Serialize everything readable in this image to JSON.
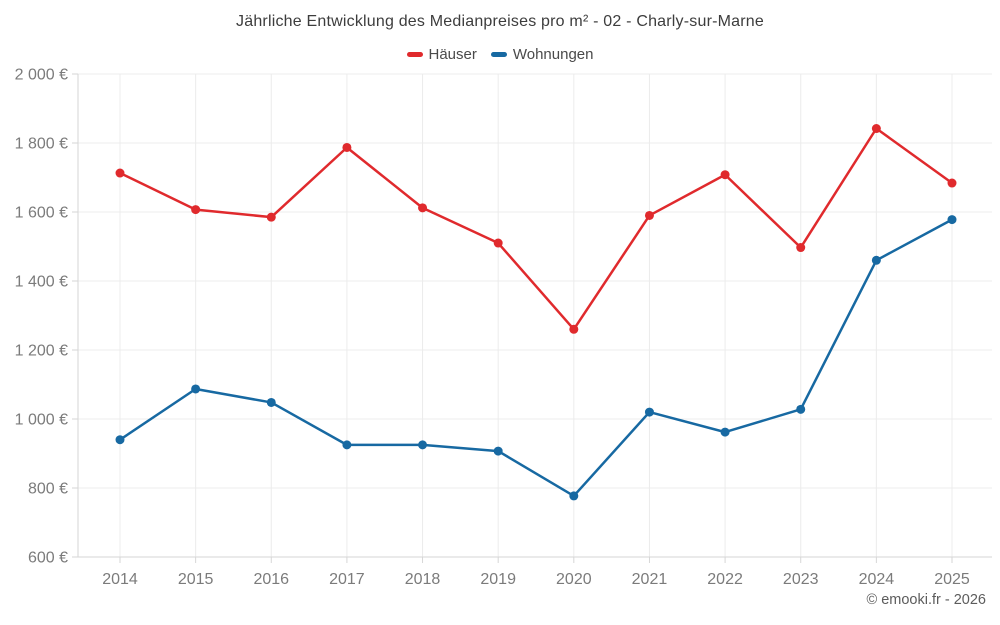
{
  "title": "Jährliche Entwicklung des Medianpreises pro m² - 02 - Charly-sur-Marne",
  "copyright": "© emooki.fr - 2026",
  "colors": {
    "haeuser": "#e02a2d",
    "wohnungen": "#1769a2",
    "grid": "#ececec",
    "axis": "#d6d6d6",
    "tick_label": "#7b7b7b",
    "title_text": "#3d3d3d",
    "legend_text": "#4a4a4a",
    "copyright_text": "#5c5c5c"
  },
  "chart_data": {
    "type": "line",
    "title": "Jährliche Entwicklung des Medianpreises pro m² - 02 - Charly-sur-Marne",
    "categories": [
      "2014",
      "2015",
      "2016",
      "2017",
      "2018",
      "2019",
      "2020",
      "2021",
      "2022",
      "2023",
      "2024",
      "2025"
    ],
    "series": [
      {
        "name": "Häuser",
        "color": "#e02a2d",
        "values": [
          1713,
          1607,
          1585,
          1787,
          1612,
          1510,
          1260,
          1590,
          1708,
          1497,
          1842,
          1684
        ]
      },
      {
        "name": "Wohnungen",
        "color": "#1769a2",
        "values": [
          940,
          1087,
          1048,
          925,
          925,
          907,
          777,
          1020,
          962,
          1028,
          1460,
          1578
        ]
      }
    ],
    "xlabel": "",
    "ylabel": "",
    "ylim": [
      600,
      2000
    ],
    "ytick_step": 200,
    "ytick_suffix": " €",
    "grid": true,
    "legend_position": "top"
  }
}
